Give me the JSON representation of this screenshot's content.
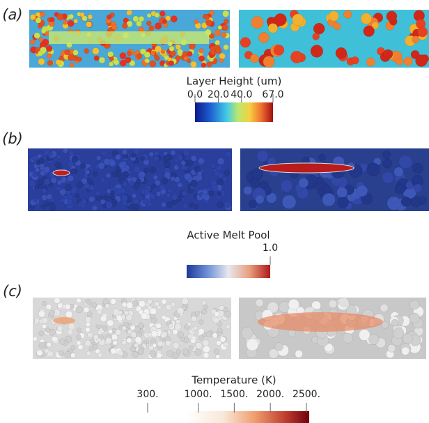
{
  "panels": [
    {
      "label": "(a)",
      "colorbar": {
        "title": "Layer Height (um)",
        "lim": [
          0,
          67
        ],
        "ticks": [
          {
            "value": 0,
            "label": "0.0"
          },
          {
            "value": 20,
            "label": "20.0"
          },
          {
            "value": 40,
            "label": "40.0"
          },
          {
            "value": 67,
            "label": "67.0"
          }
        ]
      }
    },
    {
      "label": "(b)",
      "colorbar": {
        "title": "Active Melt Pool",
        "lim": [
          0,
          1
        ],
        "ticks": [
          {
            "value": 1,
            "label": "1.0"
          }
        ]
      }
    },
    {
      "label": "(c)",
      "colorbar": {
        "title": "Temperature (K)",
        "lim": [
          300,
          2500
        ],
        "ticks": [
          {
            "value": 300,
            "label": "300."
          },
          {
            "value": 1000,
            "label": "1000."
          },
          {
            "value": 1500,
            "label": "1500."
          },
          {
            "value": 2000,
            "label": "2000."
          },
          {
            "value": 2500,
            "label": "2500."
          }
        ]
      }
    }
  ]
}
